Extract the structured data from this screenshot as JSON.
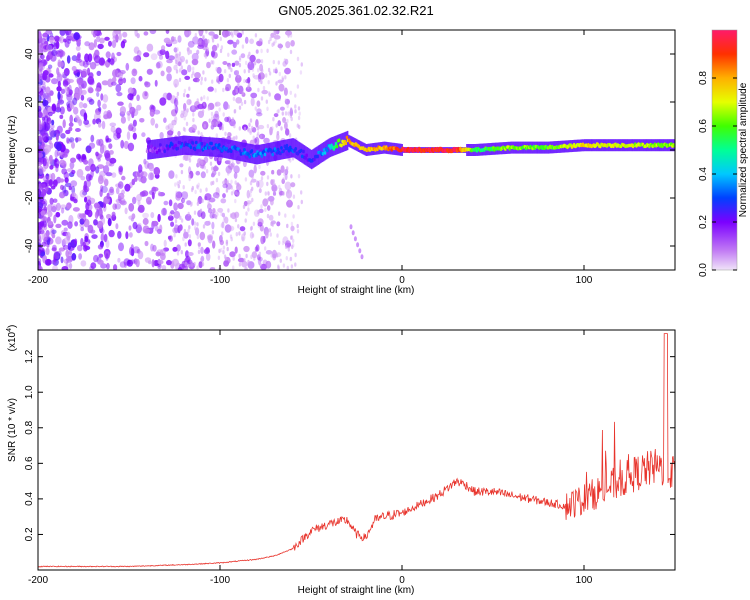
{
  "title": "GN05.2025.361.02.32.R21",
  "chart_data": [
    {
      "type": "heatmap",
      "name": "spectrogram",
      "xlabel": "Height of straight line (km)",
      "ylabel": "Frequency (Hz)",
      "xlim": [
        -200,
        150
      ],
      "ylim": [
        -50,
        50
      ],
      "xticks": [
        -200,
        -100,
        0,
        100
      ],
      "xtick_labels": [
        "-200",
        "-100",
        "0",
        "100"
      ],
      "yticks": [
        -40,
        -20,
        0,
        20,
        40
      ],
      "ytick_labels": [
        "-40",
        "-20",
        "0",
        "20",
        "40"
      ],
      "colorbar": {
        "label": "Normalized spectral amplitude",
        "range": [
          0,
          1
        ],
        "ticks": [
          0.0,
          0.2,
          0.4,
          0.6,
          0.8
        ],
        "tick_labels": [
          "0.0",
          "0.2",
          "0.4",
          "0.6",
          "0.8"
        ]
      },
      "ridge": {
        "x": [
          -140,
          -120,
          -100,
          -80,
          -60,
          -50,
          -40,
          -30,
          -20,
          -10,
          0,
          10,
          20,
          30,
          40,
          60,
          80,
          100,
          120,
          150
        ],
        "frequency": [
          0,
          2,
          1,
          -2,
          1,
          -4,
          1,
          4,
          0,
          1,
          0,
          0,
          0,
          0,
          0,
          1,
          1,
          2,
          2,
          2
        ],
        "amplitude": [
          0.2,
          0.35,
          0.35,
          0.4,
          0.35,
          0.3,
          0.45,
          0.85,
          0.85,
          0.85,
          1.0,
          1.0,
          1.0,
          1.0,
          0.6,
          0.7,
          0.65,
          0.8,
          0.75,
          0.7
        ]
      }
    },
    {
      "type": "line",
      "name": "snr",
      "xlabel": "Height of straight line (km)",
      "ylabel": "SNR (10 * v/v)",
      "y_multiplier_label": "(x10",
      "y_multiplier_exp": "4",
      "xlim": [
        -200,
        150
      ],
      "ylim": [
        0,
        1.35
      ],
      "xticks": [
        -200,
        -100,
        0,
        100
      ],
      "xtick_labels": [
        "-200",
        "-100",
        "0",
        "100"
      ],
      "yticks": [
        0.2,
        0.4,
        0.6,
        0.8,
        1.0,
        1.2
      ],
      "ytick_labels": [
        "0.2",
        "0.4",
        "0.6",
        "0.8",
        "1.0",
        "1.2"
      ],
      "color": "#e8342c",
      "x": [
        -200,
        -150,
        -120,
        -100,
        -80,
        -70,
        -60,
        -50,
        -40,
        -30,
        -25,
        -20,
        -15,
        -10,
        0,
        10,
        20,
        30,
        35,
        40,
        50,
        60,
        70,
        80,
        90,
        100,
        110,
        120,
        130,
        140,
        150
      ],
      "y": [
        0.02,
        0.02,
        0.03,
        0.04,
        0.06,
        0.08,
        0.12,
        0.22,
        0.26,
        0.28,
        0.2,
        0.18,
        0.28,
        0.3,
        0.32,
        0.37,
        0.42,
        0.5,
        0.48,
        0.44,
        0.44,
        0.42,
        0.4,
        0.38,
        0.36,
        0.4,
        0.45,
        0.5,
        0.55,
        0.58,
        0.55
      ]
    }
  ]
}
